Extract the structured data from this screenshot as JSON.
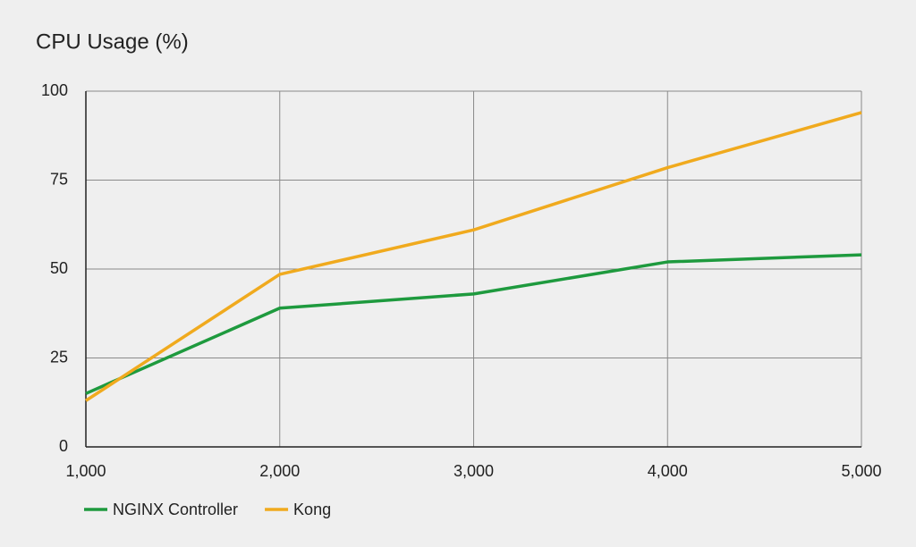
{
  "chart_data": {
    "type": "line",
    "title": "CPU Usage (%)",
    "x": [
      1000,
      2000,
      3000,
      4000,
      5000
    ],
    "series": [
      {
        "name": "NGINX Controller",
        "color": "#1e9a3e",
        "values": [
          15,
          39,
          43,
          52,
          54
        ]
      },
      {
        "name": "Kong",
        "color": "#f0aa1e",
        "values": [
          13,
          48.5,
          61,
          78.5,
          94
        ]
      }
    ],
    "xlim": [
      1000,
      5000
    ],
    "xticks": [
      {
        "value": 1000,
        "label": "1,000"
      },
      {
        "value": 2000,
        "label": "2,000"
      },
      {
        "value": 3000,
        "label": "3,000"
      },
      {
        "value": 4000,
        "label": "4,000"
      },
      {
        "value": 5000,
        "label": "5,000"
      }
    ],
    "ylim": [
      0,
      100
    ],
    "yticks": [
      0,
      25,
      50,
      75,
      100
    ],
    "grid": true,
    "legend": "bottom-left"
  }
}
